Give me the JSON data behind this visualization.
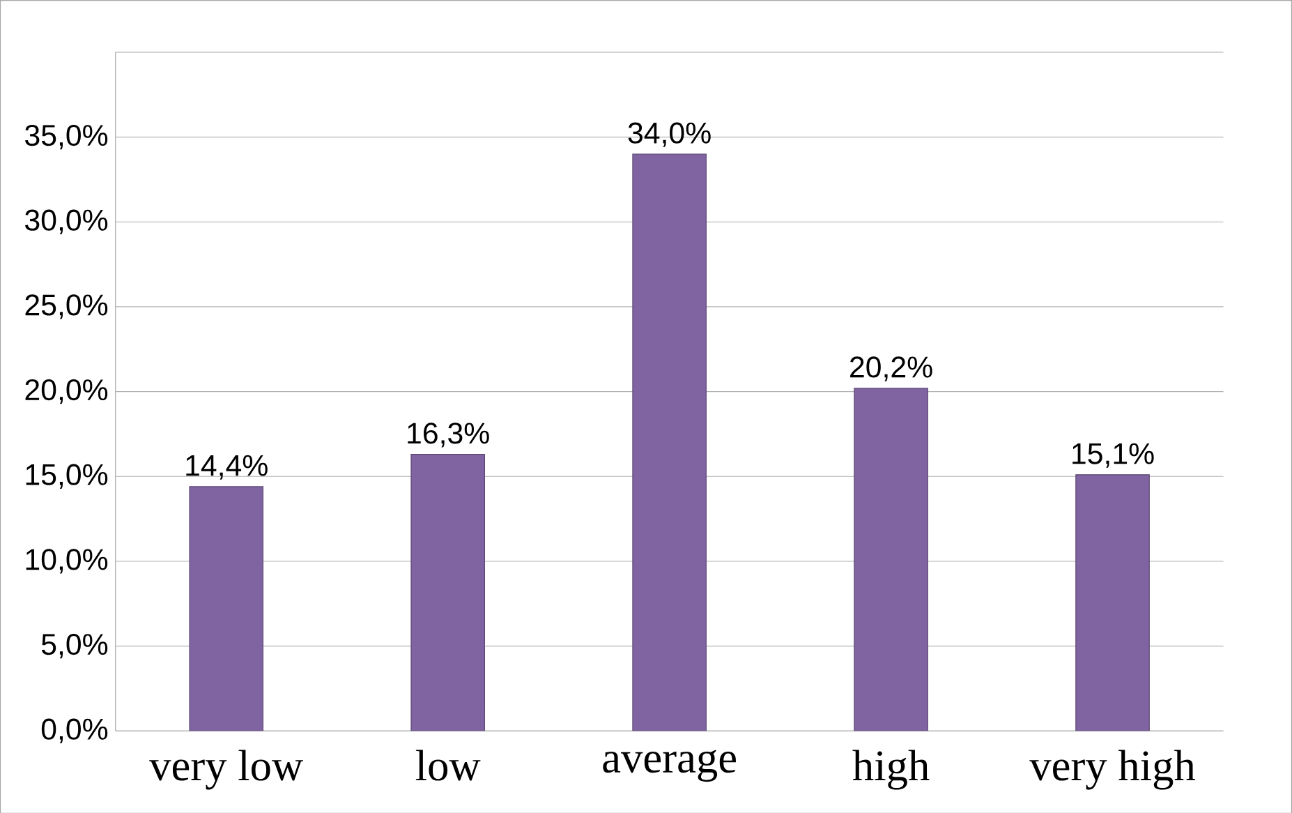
{
  "chart_data": {
    "type": "bar",
    "categories": [
      "very low",
      "low",
      "average",
      "high",
      "very high"
    ],
    "values": [
      14.4,
      16.3,
      34.0,
      20.2,
      15.1
    ],
    "value_labels": [
      "14,4%",
      "16,3%",
      "34,0%",
      "20,2%",
      "15,1%"
    ],
    "color": "#8064a2",
    "ylim": [
      0,
      40
    ],
    "yticks": [
      {
        "value": 0,
        "label": "0,0%"
      },
      {
        "value": 5,
        "label": "5,0%"
      },
      {
        "value": 10,
        "label": "10,0%"
      },
      {
        "value": 15,
        "label": "15,0%"
      },
      {
        "value": 20,
        "label": "20,0%"
      },
      {
        "value": 25,
        "label": "25,0%"
      },
      {
        "value": 30,
        "label": "30,0%"
      },
      {
        "value": 35,
        "label": "35,0%"
      },
      {
        "value": 40,
        "label": null
      }
    ],
    "grid": "y"
  }
}
